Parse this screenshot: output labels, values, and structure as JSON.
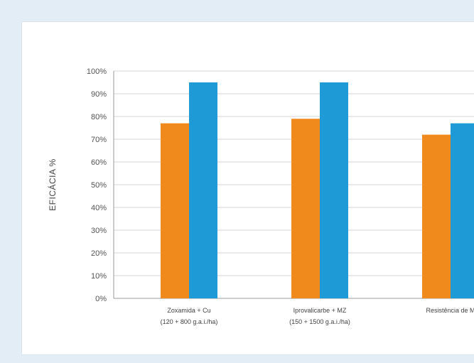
{
  "chart_data": {
    "type": "bar",
    "ylabel": "EFICÁCIA %",
    "xlabel": "",
    "title": "",
    "ylim": [
      0,
      100
    ],
    "y_ticks": [
      "0%",
      "10%",
      "20%",
      "30%",
      "40%",
      "50%",
      "60%",
      "70%",
      "80%",
      "90%",
      "100%"
    ],
    "grid": true,
    "categories": [
      [
        "Zoxamida + Cu",
        "(120 + 800 g.a.i./ha)"
      ],
      [
        "Iprovalicarbe + MZ",
        "(150 + 1500 g.a.i./ha)"
      ],
      [
        "Resistência de M"
      ]
    ],
    "series": [
      {
        "values": [
          77,
          79,
          72
        ],
        "color": "#f08a1d"
      },
      {
        "values": [
          95,
          95,
          77
        ],
        "color": "#1e9ad6"
      }
    ]
  }
}
